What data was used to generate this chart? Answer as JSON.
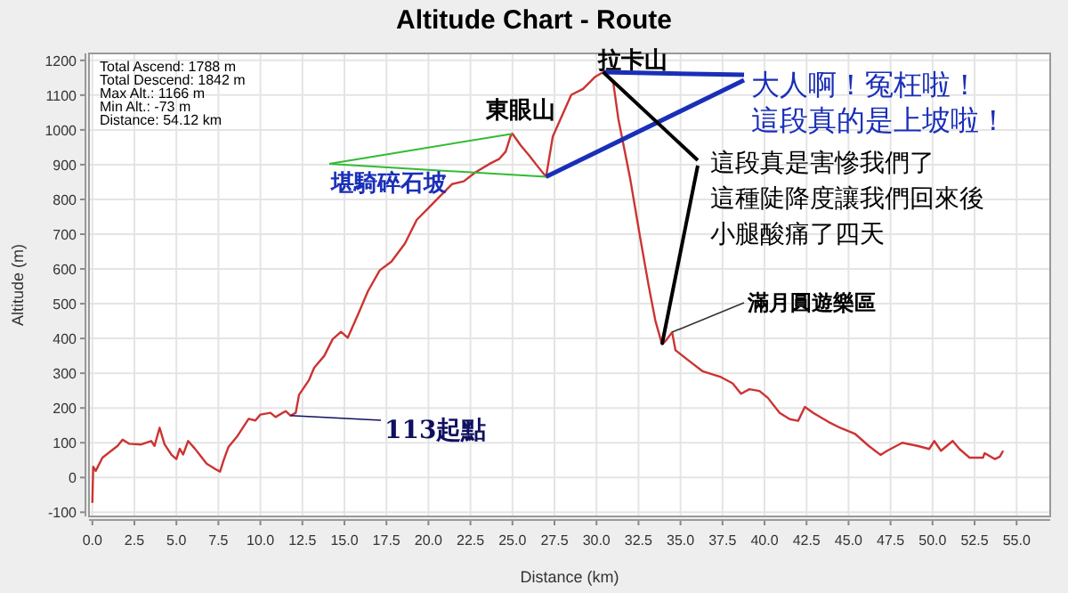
{
  "chart_data": {
    "type": "line",
    "title": "Altitude Chart - Route",
    "xlabel": "Distance (km)",
    "ylabel": "Altitude (m)",
    "xlim": [
      -0.2,
      57.0
    ],
    "ylim": [
      -112,
      1220
    ],
    "xticks": [
      {
        "value": 0,
        "label": "0.0"
      },
      {
        "value": 2.5,
        "label": "2.5"
      },
      {
        "value": 5,
        "label": "5.0"
      },
      {
        "value": 7.5,
        "label": "7.5"
      },
      {
        "value": 10,
        "label": "10.0"
      },
      {
        "value": 12.5,
        "label": "12.5"
      },
      {
        "value": 15,
        "label": "15.0"
      },
      {
        "value": 17.5,
        "label": "17.5"
      },
      {
        "value": 20,
        "label": "20.0"
      },
      {
        "value": 22.5,
        "label": "22.5"
      },
      {
        "value": 25,
        "label": "25.0"
      },
      {
        "value": 27.5,
        "label": "27.5"
      },
      {
        "value": 30,
        "label": "30.0"
      },
      {
        "value": 32.5,
        "label": "32.5"
      },
      {
        "value": 35,
        "label": "35.0"
      },
      {
        "value": 37.5,
        "label": "37.5"
      },
      {
        "value": 40,
        "label": "40.0"
      },
      {
        "value": 42.5,
        "label": "42.5"
      },
      {
        "value": 45,
        "label": "45.0"
      },
      {
        "value": 47.5,
        "label": "47.5"
      },
      {
        "value": 50,
        "label": "50.0"
      },
      {
        "value": 52.5,
        "label": "52.5"
      },
      {
        "value": 55,
        "label": "55.0"
      }
    ],
    "yticks": [
      -100,
      0,
      100,
      200,
      300,
      400,
      500,
      600,
      700,
      800,
      900,
      1000,
      1100,
      1200
    ],
    "grid": true,
    "marker": "none",
    "line_style": "solid",
    "series": [
      {
        "color": "#cc3333",
        "x": [
          0,
          0.05,
          0.2,
          0.6,
          1.5,
          1.8,
          2.2,
          2.9,
          3.5,
          3.7,
          4.0,
          4.3,
          4.7,
          5.0,
          5.2,
          5.4,
          5.7,
          6.1,
          6.8,
          7.4,
          7.6,
          7.8,
          8.1,
          8.6,
          9.3,
          9.7,
          10.0,
          10.6,
          10.9,
          11.5,
          11.8,
          12.1,
          12.3,
          12.9,
          13.2,
          13.8,
          14.3,
          14.8,
          15.2,
          15.9,
          16.4,
          17.1,
          17.8,
          18.6,
          19.3,
          20.0,
          20.7,
          21.4,
          22.1,
          22.8,
          23.7,
          24.2,
          24.6,
          24.9,
          25.0,
          25.5,
          26.0,
          26.5,
          27.0,
          27.4,
          28.5,
          29.2,
          29.9,
          30.4,
          31.0,
          31.3,
          32.0,
          32.6,
          33.1,
          33.5,
          33.9,
          34.1,
          34.5,
          34.7,
          35.6,
          36.3,
          37.4,
          38.1,
          38.6,
          39.1,
          39.7,
          40.2,
          40.9,
          41.5,
          42.0,
          42.4,
          42.9,
          43.8,
          44.5,
          45.4,
          46.2,
          46.9,
          47.3,
          48.2,
          49.1,
          49.8,
          50.1,
          50.5,
          51.2,
          51.6,
          52.2,
          53.0,
          53.1,
          53.7,
          54.0,
          54.2
        ],
        "values": [
          -73,
          31,
          19,
          57,
          91,
          109,
          97,
          95,
          105,
          91,
          143,
          95,
          66,
          53,
          83,
          66,
          105,
          83,
          40,
          22,
          17,
          48,
          88,
          117,
          169,
          164,
          181,
          186,
          174,
          191,
          178,
          186,
          238,
          281,
          316,
          350,
          398,
          419,
          402,
          479,
          536,
          596,
          621,
          673,
          741,
          775,
          810,
          844,
          852,
          878,
          904,
          916,
          938,
          984,
          989,
          955,
          926,
          895,
          865,
          981,
          1101,
          1118,
          1152,
          1166,
          1135,
          1032,
          861,
          690,
          553,
          452,
          383,
          392,
          418,
          366,
          332,
          306,
          289,
          271,
          241,
          254,
          249,
          229,
          186,
          168,
          163,
          203,
          186,
          160,
          143,
          125,
          91,
          65,
          77,
          100,
          91,
          82,
          105,
          77,
          105,
          82,
          57,
          57,
          70,
          53,
          60,
          77
        ]
      }
    ],
    "annotations": [
      "Total Ascend: 1788 m",
      "Total Descend: 1842 m",
      "Max Alt.: 1166 m",
      "Min Alt.: -73 m",
      "Distance: 54.12 km",
      {
        "text": "東眼山",
        "x": 25.0,
        "y": 989
      },
      {
        "text": "拉卡山",
        "x": 30.4,
        "y": 1166
      },
      {
        "text": "堪騎碎石坡",
        "x": 25.0,
        "y": 989
      },
      {
        "text": "大人啊！冤枉啦！這段真的是上坡啦！",
        "x": 30.4,
        "y": 1166
      },
      {
        "text": "這段真是害慘我們了這種陡降度讓我們回來後小腿酸痛了四天",
        "x": 30.4,
        "y": 1166
      },
      {
        "text": "滿月圓遊樂區",
        "x": 34.5,
        "y": 418
      },
      {
        "text": "113起點",
        "x": 11.8,
        "y": 178
      }
    ]
  }
}
